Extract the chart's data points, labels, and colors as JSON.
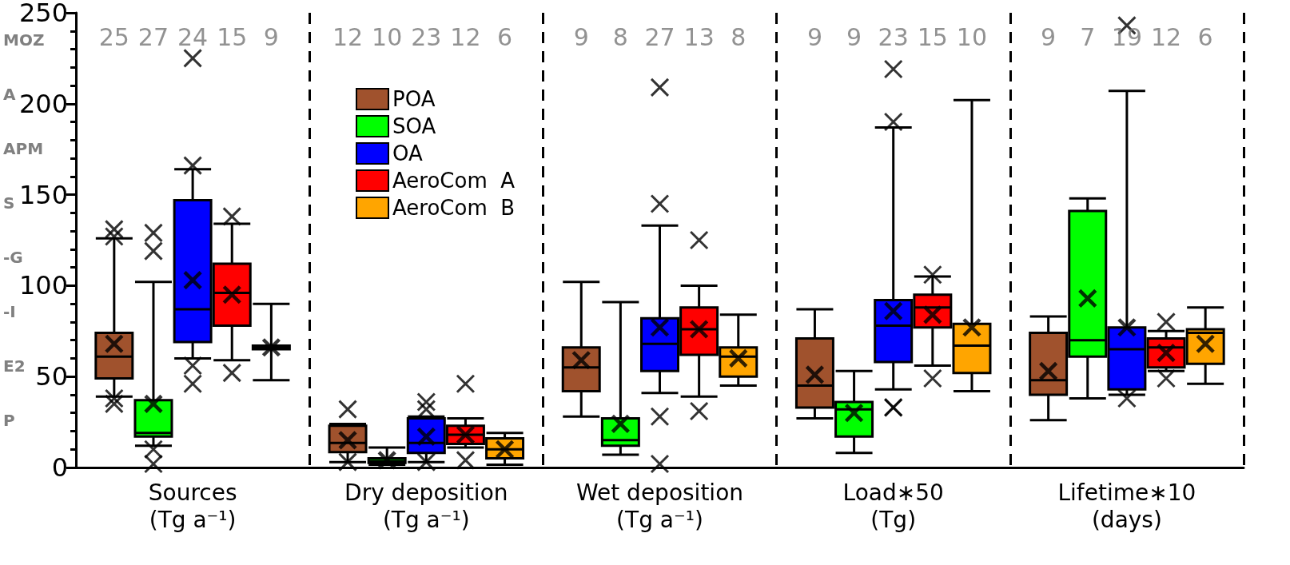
{
  "chart_data": {
    "type": "box",
    "categories": [
      "Sources\n(Tg a⁻¹)",
      "Dry deposition\n(Tg a⁻¹)",
      "Wet deposition\n(Tg a⁻¹)",
      "Load∗50\n(Tg)",
      "Lifetime∗10\n(days)"
    ],
    "ylim": [
      0,
      250
    ],
    "yticks": [
      0,
      50,
      100,
      150,
      200,
      250
    ],
    "grid": "x",
    "legend": "top left",
    "annotations": [
      "MOZ",
      "A",
      "APM",
      "S",
      "-G",
      "-I",
      "E2",
      "P"
    ],
    "series": [
      {
        "name": "POA",
        "color": "#a0522d",
        "value_labels": [
          "25",
          "12",
          "9",
          "9",
          "9"
        ],
        "boxes": [
          {
            "low": 39,
            "q1": 49,
            "median": 61,
            "q3": 74,
            "high": 126,
            "mean": 68,
            "outliers": [
              131,
              127,
              38,
              35
            ]
          },
          {
            "low": 3,
            "q1": 8.5,
            "median": 13.5,
            "q3": 23,
            "high": 24,
            "mean": 15,
            "outliers": [
              32,
              3
            ]
          },
          {
            "low": 28,
            "q1": 42,
            "median": 55,
            "q3": 66,
            "high": 102,
            "mean": 59
          },
          {
            "low": 27,
            "q1": 33,
            "median": 45,
            "q3": 71,
            "high": 87,
            "mean": 51
          },
          {
            "low": 26,
            "q1": 40,
            "median": 48,
            "q3": 74,
            "high": 83,
            "mean": 53
          }
        ]
      },
      {
        "name": "SOA",
        "color": "#00ff00",
        "value_labels": [
          "27",
          "10",
          "8",
          "9",
          "7"
        ],
        "boxes": [
          {
            "low": 12,
            "q1": 17,
            "median": 19,
            "q3": 37,
            "high": 102,
            "mean": 35,
            "outliers": [
              129,
              119,
              10,
              2
            ]
          },
          {
            "low": 1.5,
            "q1": 2.5,
            "median": 3.5,
            "q3": 5,
            "high": 11,
            "mean": 4
          },
          {
            "low": 7,
            "q1": 12,
            "median": 15,
            "q3": 27,
            "high": 91,
            "mean": 24
          },
          {
            "low": 8,
            "q1": 17,
            "median": 32,
            "q3": 36,
            "high": 53,
            "mean": 30
          },
          {
            "low": 38,
            "q1": 61,
            "median": 70,
            "q3": 141,
            "high": 148,
            "mean": 93
          }
        ]
      },
      {
        "name": "OA",
        "color": "#0000ff",
        "value_labels": [
          "24",
          "23",
          "27",
          "23",
          "19"
        ],
        "boxes": [
          {
            "low": 60,
            "q1": 69,
            "median": 87,
            "q3": 147,
            "high": 164,
            "mean": 103,
            "outliers": [
              225,
              166,
              56,
              46
            ]
          },
          {
            "low": 3,
            "q1": 8,
            "median": 13.5,
            "q3": 27,
            "high": 28,
            "mean": 17,
            "outliers": [
              36,
              32,
              3
            ]
          },
          {
            "low": 41,
            "q1": 53,
            "median": 68,
            "q3": 82,
            "high": 133,
            "mean": 77,
            "outliers": [
              209,
              145,
              28,
              2
            ]
          },
          {
            "low": 43,
            "q1": 58,
            "median": 78,
            "q3": 92,
            "high": 187,
            "mean": 86,
            "outliers": [
              219,
              190,
              33,
              33
            ]
          },
          {
            "low": 40,
            "q1": 43,
            "median": 65,
            "q3": 77,
            "high": 207,
            "mean": 77,
            "outliers": [
              243,
              38
            ]
          }
        ]
      },
      {
        "name": "AeroCom  A",
        "color": "#ff0000",
        "value_labels": [
          "15",
          "12",
          "13",
          "15",
          "12"
        ],
        "boxes": [
          {
            "low": 59,
            "q1": 78,
            "median": 96,
            "q3": 112,
            "high": 134,
            "mean": 95,
            "outliers": [
              138,
              52
            ]
          },
          {
            "low": 11,
            "q1": 13,
            "median": 18,
            "q3": 23,
            "high": 27,
            "mean": 18,
            "outliers": [
              46,
              4
            ]
          },
          {
            "low": 39,
            "q1": 62,
            "median": 76,
            "q3": 88,
            "high": 100,
            "mean": 76,
            "outliers": [
              125,
              31
            ]
          },
          {
            "low": 56,
            "q1": 77,
            "median": 88,
            "q3": 95,
            "high": 105,
            "mean": 84,
            "outliers": [
              106,
              49
            ]
          },
          {
            "low": 53,
            "q1": 55,
            "median": 66,
            "q3": 71,
            "high": 75,
            "mean": 63,
            "outliers": [
              80,
              49
            ]
          }
        ]
      },
      {
        "name": "AeroCom  B",
        "color": "#ffa500",
        "value_labels": [
          "9",
          "6",
          "8",
          "10",
          "6"
        ],
        "boxes": [
          {
            "low": 48,
            "q1": 65,
            "median": 66,
            "q3": 67,
            "high": 90,
            "mean": 66
          },
          {
            "low": 1.5,
            "q1": 5,
            "median": 10,
            "q3": 16,
            "high": 19,
            "mean": 10
          },
          {
            "low": 45,
            "q1": 50,
            "median": 61,
            "q3": 66,
            "high": 84,
            "mean": 60
          },
          {
            "low": 42,
            "q1": 52,
            "median": 67,
            "q3": 79,
            "high": 202,
            "mean": 77
          },
          {
            "low": 46,
            "q1": 57,
            "median": 74,
            "q3": 76,
            "high": 88,
            "mean": 68
          }
        ]
      }
    ]
  }
}
